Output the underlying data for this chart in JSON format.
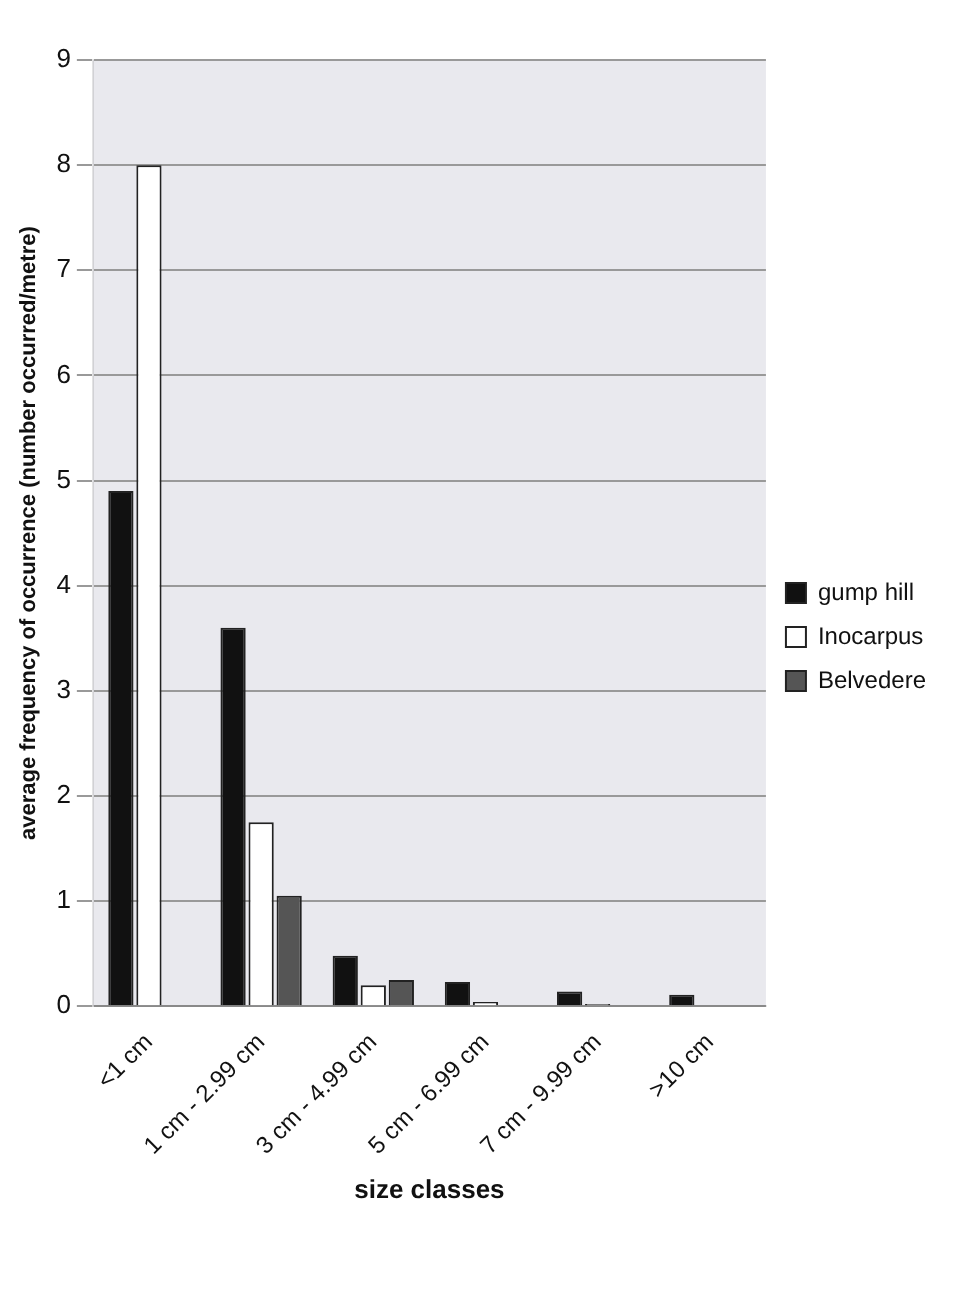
{
  "chart_data": {
    "type": "bar",
    "xlabel": "size classes",
    "ylabel": "average frequency of occurrence (number occurred/metre)",
    "categories": [
      "<1 cm",
      "1 cm - 2.99 cm",
      "3 cm - 4.99 cm",
      "5 cm - 6.99 cm",
      "7 cm - 9.99 cm",
      ">10 cm"
    ],
    "series": [
      {
        "name": "gump hill",
        "color": "#111111",
        "values": [
          4.9,
          3.6,
          0.48,
          0.23,
          0.14,
          0.11
        ]
      },
      {
        "name": "Inocarpus",
        "color": "#ffffff",
        "values": [
          8.0,
          1.75,
          0.2,
          0.04,
          0.02,
          null
        ]
      },
      {
        "name": "Belvedere",
        "color": "#555555",
        "values": [
          null,
          1.05,
          0.25,
          null,
          0.01,
          0.01
        ]
      }
    ],
    "ylim": [
      0,
      9
    ],
    "yticks": [
      0,
      1,
      2,
      3,
      4,
      5,
      6,
      7,
      8,
      9
    ],
    "grid": "y",
    "legend": "right"
  }
}
